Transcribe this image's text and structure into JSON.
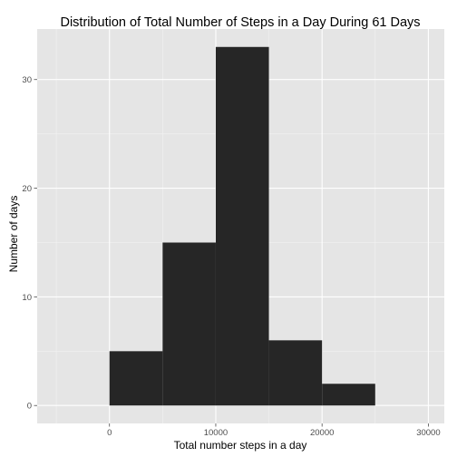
{
  "chart_data": {
    "type": "bar",
    "title": "Distribution of Total Number of Steps in a Day During 61 Days",
    "xlabel": "Total number steps in a day",
    "ylabel": "Number of days",
    "bins": [
      {
        "start": 0,
        "end": 5000,
        "count": 5
      },
      {
        "start": 5000,
        "end": 10000,
        "count": 15
      },
      {
        "start": 10000,
        "end": 15000,
        "count": 33
      },
      {
        "start": 15000,
        "end": 20000,
        "count": 6
      },
      {
        "start": 20000,
        "end": 25000,
        "count": 2
      }
    ],
    "xlim": [
      -6800,
      31500
    ],
    "ylim": [
      -1.65,
      34.65
    ],
    "xticks": [
      {
        "value": 0,
        "label": "0"
      },
      {
        "value": 10000,
        "label": "10000"
      },
      {
        "value": 20000,
        "label": "20000"
      },
      {
        "value": 30000,
        "label": "30000"
      }
    ],
    "yticks": [
      {
        "value": 0,
        "label": "0"
      },
      {
        "value": 10,
        "label": "10"
      },
      {
        "value": 20,
        "label": "20"
      },
      {
        "value": 30,
        "label": "30"
      }
    ],
    "bar_color": "#262626",
    "panel_color": "#e5e5e5",
    "grid": true,
    "legend": "none"
  }
}
